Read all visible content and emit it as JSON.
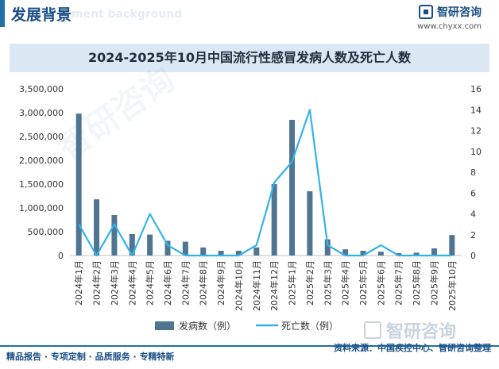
{
  "header": {
    "title": "发展背景",
    "ghost_text": "ment background",
    "logo_text": "智研咨询",
    "logo_url": "www.chyxx.com"
  },
  "footer": {
    "left": "精品报告 · 专项定制 · 品质服务 · 专精特新",
    "source": "资料来源：中国疾控中心、智研咨询整理"
  },
  "watermark": {
    "brand": "智研咨询"
  },
  "chart_data": {
    "type": "bar",
    "title": "2024-2025年10月中国流行性感冒发病人数及死亡人数",
    "categories": [
      "2024年1月",
      "2024年2月",
      "2024年3月",
      "2024年4月",
      "2024年5月",
      "2024年6月",
      "2024年7月",
      "2024年8月",
      "2024年9月",
      "2024年10月",
      "2024年11月",
      "2024年12月",
      "2025年1月",
      "2025年2月",
      "2025年3月",
      "2025年4月",
      "2025年5月",
      "2025年6月",
      "2025年7月",
      "2025年8月",
      "2025年9月",
      "2025年10月"
    ],
    "series": [
      {
        "name": "发病数（例）",
        "type": "bar",
        "axis": "left",
        "color": "#4f7592",
        "values": [
          2980000,
          1180000,
          850000,
          450000,
          440000,
          310000,
          290000,
          170000,
          100000,
          100000,
          170000,
          1500000,
          2850000,
          1350000,
          340000,
          130000,
          100000,
          80000,
          50000,
          60000,
          150000,
          430000
        ]
      },
      {
        "name": "死亡数（例）",
        "type": "line",
        "axis": "right",
        "color": "#33b3e8",
        "values": [
          3,
          0,
          3,
          0,
          4,
          1,
          0,
          0,
          0,
          0,
          1,
          7,
          9,
          14,
          1,
          0,
          0,
          1,
          0,
          0,
          0,
          0
        ]
      }
    ],
    "y_left": {
      "min": 0,
      "max": 3500000,
      "ticks": [
        0,
        500000,
        1000000,
        1500000,
        2000000,
        2500000,
        3000000,
        3500000
      ],
      "tick_labels": [
        "0",
        "500,000",
        "1,000,000",
        "1,500,000",
        "2,000,000",
        "2,500,000",
        "3,000,000",
        "3,500,000"
      ]
    },
    "y_right": {
      "min": 0,
      "max": 16,
      "ticks": [
        0,
        2,
        4,
        6,
        8,
        10,
        12,
        14,
        16
      ],
      "tick_labels": [
        "0",
        "2",
        "4",
        "6",
        "8",
        "10",
        "12",
        "14",
        "16"
      ]
    },
    "grid": false,
    "legend": "bottom"
  }
}
